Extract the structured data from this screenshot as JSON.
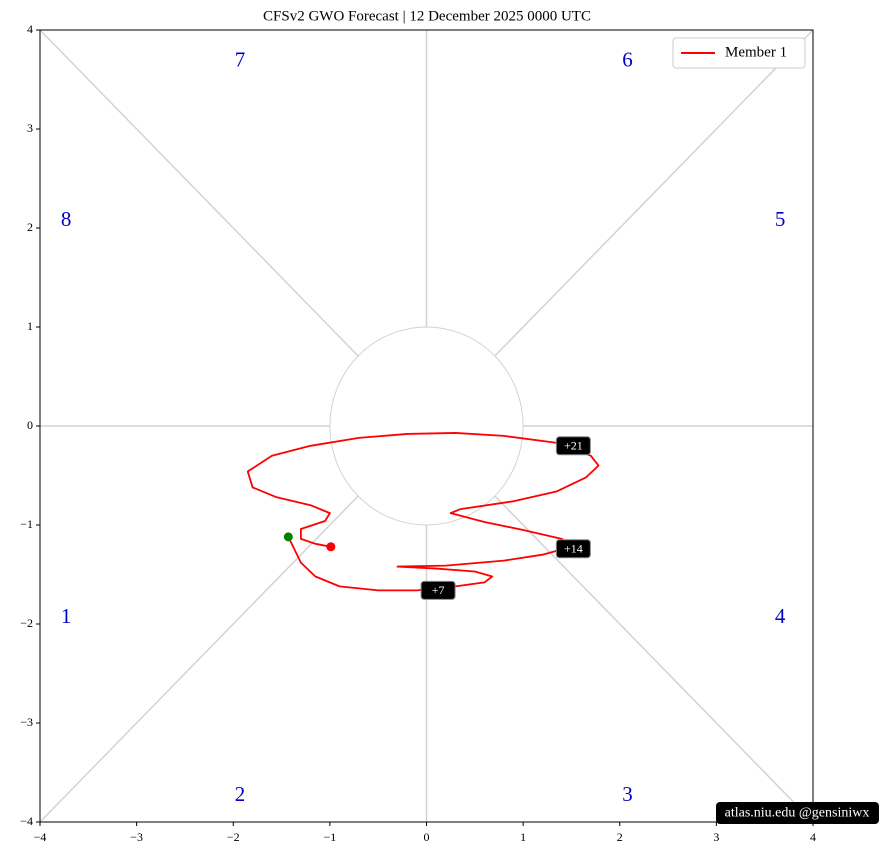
{
  "chart_data": {
    "type": "line",
    "title": "CFSv2 GWO Forecast   |   12  December  2025 0000 UTC",
    "xlim": [
      -4,
      4
    ],
    "ylim": [
      -4,
      4
    ],
    "xticks": [
      {
        "value": -4,
        "label": "−4"
      },
      {
        "value": -3,
        "label": "−3"
      },
      {
        "value": -2,
        "label": "−2"
      },
      {
        "value": -1,
        "label": "−1"
      },
      0,
      1,
      2,
      3,
      4
    ],
    "yticks": [
      {
        "value": -4,
        "label": "−4"
      },
      {
        "value": -3,
        "label": "−3"
      },
      {
        "value": -2,
        "label": "−2"
      },
      {
        "value": -1,
        "label": "−1"
      },
      0,
      1,
      2,
      3,
      4
    ],
    "legend": "upper right",
    "series": [
      {
        "name": "Member 1",
        "color": "red",
        "x": [
          -1.43,
          -1.38,
          -1.3,
          -1.15,
          -0.9,
          -0.5,
          -0.1,
          0.3,
          0.6,
          0.68,
          0.5,
          0.1,
          -0.3,
          0.2,
          0.8,
          1.2,
          1.5,
          1.4,
          1.0,
          0.6,
          0.25,
          0.35,
          0.9,
          1.35,
          1.65,
          1.78,
          1.7,
          1.35,
          0.8,
          0.3,
          -0.2,
          -0.7,
          -1.2,
          -1.6,
          -1.85,
          -1.8,
          -1.55,
          -1.2,
          -1.0,
          -1.05,
          -1.3,
          -1.3,
          -1.15,
          -0.99
        ],
        "y": [
          -1.12,
          -1.22,
          -1.38,
          -1.52,
          -1.62,
          -1.66,
          -1.66,
          -1.62,
          -1.58,
          -1.52,
          -1.47,
          -1.44,
          -1.42,
          -1.41,
          -1.36,
          -1.3,
          -1.22,
          -1.14,
          -1.05,
          -0.97,
          -0.88,
          -0.84,
          -0.76,
          -0.66,
          -0.52,
          -0.4,
          -0.3,
          -0.17,
          -0.1,
          -0.07,
          -0.08,
          -0.12,
          -0.2,
          -0.3,
          -0.46,
          -0.62,
          -0.72,
          -0.8,
          -0.88,
          -0.96,
          -1.04,
          -1.14,
          -1.19,
          -1.22
        ],
        "start_color": "green",
        "end_color": "red"
      }
    ],
    "annotations": [
      {
        "text": "+21",
        "x": 1.52,
        "y": -0.2
      },
      {
        "text": "+14",
        "x": 1.52,
        "y": -1.24
      },
      {
        "text": "+7",
        "x": 0.12,
        "y": -1.66
      }
    ],
    "phase_labels": [
      {
        "text": "1",
        "x": -3.73,
        "y": -1.94
      },
      {
        "text": "2",
        "x": -1.93,
        "y": -3.74
      },
      {
        "text": "3",
        "x": 2.08,
        "y": -3.74
      },
      {
        "text": "4",
        "x": 3.66,
        "y": -1.94
      },
      {
        "text": "5",
        "x": 3.66,
        "y": 2.07
      },
      {
        "text": "6",
        "x": 2.08,
        "y": 3.68
      },
      {
        "text": "7",
        "x": -1.93,
        "y": 3.68
      },
      {
        "text": "8",
        "x": -3.73,
        "y": 2.07
      }
    ],
    "watermark": "atlas.niu.edu  @gensiniwx"
  }
}
